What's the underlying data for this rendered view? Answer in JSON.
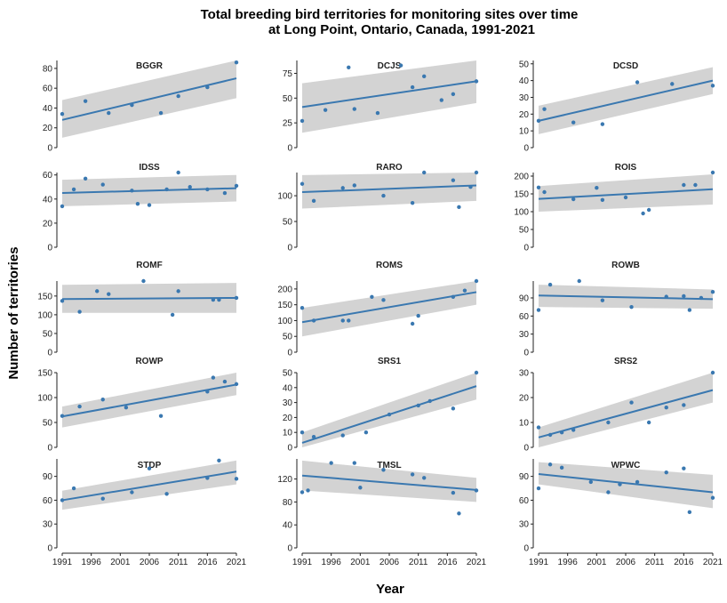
{
  "chart_data": {
    "type": "scatter",
    "title": "Total breeding bird territories for monitoring sites over time",
    "subtitle": "at Long Point, Ontario, Canada, 1991-2021",
    "xlabel": "Year",
    "ylabel": "Number of territories",
    "grid": false,
    "xlim": [
      1991,
      2021
    ],
    "x_ticks": [
      1991,
      1996,
      2001,
      2006,
      2011,
      2016,
      2021
    ],
    "colors": {
      "points": "#3a78b0",
      "trend": "#3a78b0",
      "band": "#d3d3d3"
    },
    "panels": [
      {
        "title": "BGGR",
        "ylim": [
          0,
          88
        ],
        "y_ticks": [
          0,
          20,
          40,
          60,
          80
        ],
        "trend": [
          28,
          70
        ],
        "band": [
          [
            10,
            48
          ],
          [
            50,
            90
          ]
        ],
        "points": [
          [
            1991,
            34
          ],
          [
            1995,
            47
          ],
          [
            1999,
            35
          ],
          [
            2003,
            43
          ],
          [
            2008,
            35
          ],
          [
            2011,
            52
          ],
          [
            2016,
            61
          ],
          [
            2021,
            86
          ]
        ]
      },
      {
        "title": "DCJS",
        "ylim": [
          0,
          88
        ],
        "y_ticks": [
          0,
          25,
          50,
          75
        ],
        "trend": [
          41,
          67
        ],
        "band": [
          [
            15,
            65
          ],
          [
            45,
            90
          ]
        ],
        "points": [
          [
            1991,
            27
          ],
          [
            1995,
            38
          ],
          [
            1999,
            81
          ],
          [
            2000,
            39
          ],
          [
            2004,
            35
          ],
          [
            2008,
            83
          ],
          [
            2010,
            61
          ],
          [
            2012,
            72
          ],
          [
            2015,
            48
          ],
          [
            2017,
            54
          ],
          [
            2021,
            67
          ]
        ]
      },
      {
        "title": "DCSD",
        "ylim": [
          0,
          52
        ],
        "y_ticks": [
          0,
          10,
          20,
          30,
          40,
          50
        ],
        "trend": [
          16,
          40
        ],
        "band": [
          [
            8,
            25
          ],
          [
            32,
            48
          ]
        ],
        "points": [
          [
            1991,
            16
          ],
          [
            1992,
            23
          ],
          [
            1997,
            15
          ],
          [
            2002,
            14
          ],
          [
            2008,
            39
          ],
          [
            2014,
            38
          ],
          [
            2021,
            37
          ]
        ]
      },
      {
        "title": "IDSS",
        "ylim": [
          0,
          62
        ],
        "y_ticks": [
          0,
          20,
          40,
          60
        ],
        "trend": [
          45,
          49
        ],
        "band": [
          [
            34,
            56
          ],
          [
            38,
            60
          ]
        ],
        "points": [
          [
            1991,
            34
          ],
          [
            1993,
            48
          ],
          [
            1995,
            57
          ],
          [
            1998,
            52
          ],
          [
            2003,
            47
          ],
          [
            2004,
            36
          ],
          [
            2006,
            35
          ],
          [
            2009,
            48
          ],
          [
            2011,
            62
          ],
          [
            2013,
            50
          ],
          [
            2016,
            48
          ],
          [
            2019,
            45
          ],
          [
            2021,
            51
          ]
        ]
      },
      {
        "title": "RARO",
        "ylim": [
          0,
          145
        ],
        "y_ticks": [
          0,
          50,
          100
        ],
        "trend": [
          107,
          120
        ],
        "band": [
          [
            75,
            140
          ],
          [
            90,
            145
          ]
        ],
        "points": [
          [
            1991,
            123
          ],
          [
            1993,
            90
          ],
          [
            1998,
            115
          ],
          [
            2000,
            120
          ],
          [
            2005,
            100
          ],
          [
            2010,
            86
          ],
          [
            2012,
            145
          ],
          [
            2017,
            130
          ],
          [
            2018,
            78
          ],
          [
            2020,
            117
          ],
          [
            2021,
            145
          ]
        ]
      },
      {
        "title": "ROIS",
        "ylim": [
          0,
          210
        ],
        "y_ticks": [
          0,
          50,
          100,
          150,
          200
        ],
        "trend": [
          136,
          163
        ],
        "band": [
          [
            100,
            172
          ],
          [
            120,
            205
          ]
        ],
        "points": [
          [
            1991,
            168
          ],
          [
            1992,
            155
          ],
          [
            1997,
            135
          ],
          [
            2001,
            167
          ],
          [
            2002,
            133
          ],
          [
            2006,
            140
          ],
          [
            2009,
            95
          ],
          [
            2010,
            105
          ],
          [
            2016,
            175
          ],
          [
            2018,
            175
          ],
          [
            2021,
            210
          ]
        ]
      },
      {
        "title": "ROMF",
        "ylim": [
          0,
          190
        ],
        "y_ticks": [
          0,
          50,
          100,
          150
        ],
        "trend": [
          142,
          145
        ],
        "band": [
          [
            105,
            180
          ],
          [
            105,
            185
          ]
        ],
        "points": [
          [
            1991,
            137
          ],
          [
            1994,
            108
          ],
          [
            1997,
            163
          ],
          [
            1999,
            155
          ],
          [
            2005,
            190
          ],
          [
            2010,
            100
          ],
          [
            2011,
            163
          ],
          [
            2017,
            140
          ],
          [
            2018,
            140
          ],
          [
            2021,
            145
          ]
        ]
      },
      {
        "title": "ROMS",
        "ylim": [
          0,
          225
        ],
        "y_ticks": [
          0,
          50,
          100,
          150,
          200
        ],
        "trend": [
          95,
          190
        ],
        "band": [
          [
            50,
            140
          ],
          [
            150,
            228
          ]
        ],
        "points": [
          [
            1991,
            140
          ],
          [
            1993,
            100
          ],
          [
            1998,
            100
          ],
          [
            1999,
            100
          ],
          [
            2003,
            175
          ],
          [
            2005,
            165
          ],
          [
            2010,
            90
          ],
          [
            2011,
            115
          ],
          [
            2017,
            175
          ],
          [
            2019,
            195
          ],
          [
            2021,
            228
          ]
        ]
      },
      {
        "title": "ROWB",
        "ylim": [
          0,
          118
        ],
        "y_ticks": [
          0,
          30,
          60,
          90
        ],
        "trend": [
          94,
          88
        ],
        "band": [
          [
            75,
            112
          ],
          [
            72,
            104
          ]
        ],
        "points": [
          [
            1991,
            70
          ],
          [
            1993,
            112
          ],
          [
            1998,
            118
          ],
          [
            2002,
            86
          ],
          [
            2007,
            75
          ],
          [
            2013,
            92
          ],
          [
            2016,
            93
          ],
          [
            2017,
            70
          ],
          [
            2019,
            90
          ],
          [
            2021,
            100
          ]
        ]
      },
      {
        "title": "ROWP",
        "ylim": [
          0,
          150
        ],
        "y_ticks": [
          0,
          50,
          100,
          150
        ],
        "trend": [
          62,
          126
        ],
        "band": [
          [
            40,
            82
          ],
          [
            105,
            150
          ]
        ],
        "points": [
          [
            1991,
            63
          ],
          [
            1994,
            82
          ],
          [
            1998,
            96
          ],
          [
            2002,
            80
          ],
          [
            2008,
            63
          ],
          [
            2016,
            112
          ],
          [
            2017,
            140
          ],
          [
            2019,
            132
          ],
          [
            2021,
            127
          ]
        ]
      },
      {
        "title": "SRS1",
        "ylim": [
          0,
          50
        ],
        "y_ticks": [
          0,
          10,
          20,
          30,
          40,
          50
        ],
        "trend": [
          3,
          41
        ],
        "band": [
          [
            -3,
            10
          ],
          [
            32,
            50
          ]
        ],
        "points": [
          [
            1991,
            10
          ],
          [
            1993,
            7
          ],
          [
            1998,
            8
          ],
          [
            2002,
            10
          ],
          [
            2006,
            22
          ],
          [
            2011,
            28
          ],
          [
            2013,
            31
          ],
          [
            2017,
            26
          ],
          [
            2021,
            50
          ]
        ]
      },
      {
        "title": "SRS2",
        "ylim": [
          0,
          30
        ],
        "y_ticks": [
          0,
          10,
          20,
          30
        ],
        "trend": [
          4,
          23
        ],
        "band": [
          [
            0,
            8
          ],
          [
            18,
            30
          ]
        ],
        "points": [
          [
            1991,
            8
          ],
          [
            1993,
            5
          ],
          [
            1995,
            6
          ],
          [
            1997,
            7
          ],
          [
            2003,
            10
          ],
          [
            2007,
            18
          ],
          [
            2010,
            10
          ],
          [
            2013,
            16
          ],
          [
            2016,
            17
          ],
          [
            2021,
            31
          ]
        ]
      },
      {
        "title": "STDP",
        "ylim": [
          0,
          112
        ],
        "y_ticks": [
          0,
          30,
          60,
          90
        ],
        "trend": [
          60,
          96
        ],
        "band": [
          [
            48,
            72
          ],
          [
            80,
            110
          ]
        ],
        "points": [
          [
            1991,
            60
          ],
          [
            1993,
            75
          ],
          [
            1998,
            62
          ],
          [
            2003,
            70
          ],
          [
            2006,
            100
          ],
          [
            2009,
            68
          ],
          [
            2016,
            88
          ],
          [
            2018,
            110
          ],
          [
            2021,
            87
          ]
        ]
      },
      {
        "title": "TMSL",
        "ylim": [
          0,
          155
        ],
        "y_ticks": [
          0,
          40,
          80,
          120
        ],
        "trend": [
          126,
          101
        ],
        "band": [
          [
            100,
            152
          ],
          [
            80,
            122
          ]
        ],
        "points": [
          [
            1991,
            97
          ],
          [
            1992,
            100
          ],
          [
            1996,
            148
          ],
          [
            2000,
            148
          ],
          [
            2001,
            105
          ],
          [
            2005,
            136
          ],
          [
            2010,
            128
          ],
          [
            2012,
            122
          ],
          [
            2017,
            96
          ],
          [
            2018,
            60
          ],
          [
            2021,
            100
          ]
        ]
      },
      {
        "title": "WPWC",
        "ylim": [
          0,
          112
        ],
        "y_ticks": [
          0,
          30,
          60,
          90
        ],
        "trend": [
          93,
          70
        ],
        "band": [
          [
            80,
            108
          ],
          [
            50,
            92
          ]
        ],
        "points": [
          [
            1991,
            75
          ],
          [
            1993,
            105
          ],
          [
            1995,
            101
          ],
          [
            2000,
            83
          ],
          [
            2003,
            70
          ],
          [
            2005,
            80
          ],
          [
            2008,
            83
          ],
          [
            2013,
            95
          ],
          [
            2016,
            100
          ],
          [
            2017,
            45
          ],
          [
            2021,
            63
          ]
        ]
      }
    ]
  }
}
